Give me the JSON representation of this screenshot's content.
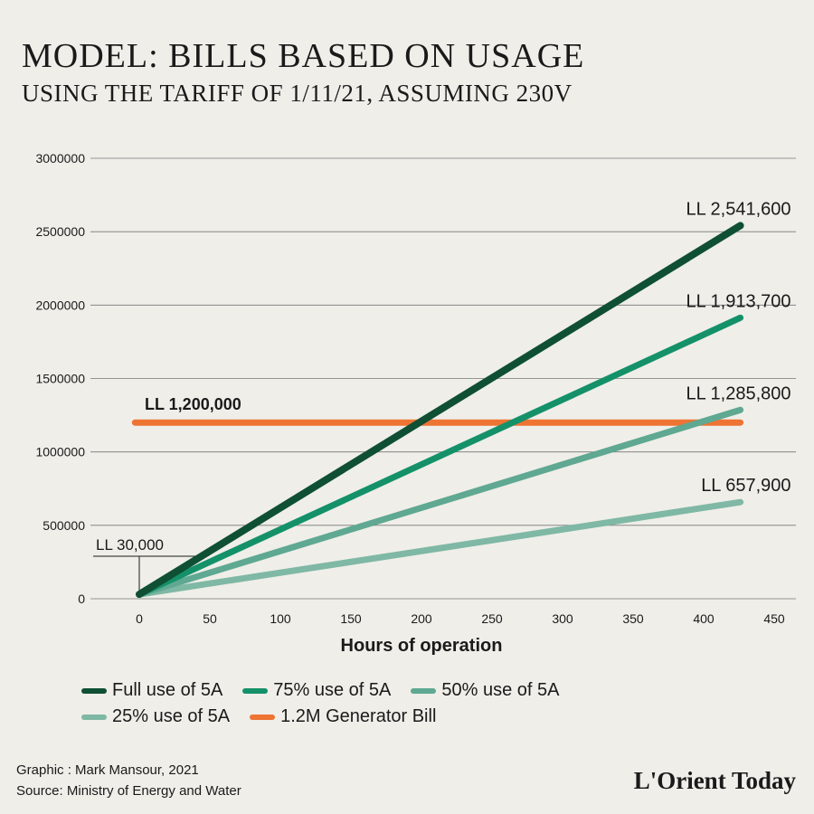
{
  "title": "MODEL: BILLS BASED ON USAGE",
  "subtitle": "USING THE TARIFF OF 1/11/21, ASSUMING 230V",
  "chart_data": {
    "type": "line",
    "xlabel": "Hours of operation",
    "ylabel": "",
    "xlim": [
      -20,
      470
    ],
    "ylim": [
      0,
      3000000
    ],
    "x_ticks": [
      0,
      50,
      100,
      150,
      200,
      250,
      300,
      350,
      400,
      450
    ],
    "y_ticks": [
      0,
      500000,
      1000000,
      1500000,
      2000000,
      2500000,
      3000000
    ],
    "grid": "horizontal",
    "series": [
      {
        "name": "Full use of 5A",
        "color": "#0f4f34",
        "x": [
          0,
          426
        ],
        "y": [
          30000,
          2541600
        ],
        "end_label": "LL 2,541,600"
      },
      {
        "name": "75% use of 5A",
        "color": "#149169",
        "x": [
          0,
          426
        ],
        "y": [
          30000,
          1913700
        ],
        "end_label": "LL 1,913,700"
      },
      {
        "name": "50% use of 5A",
        "color": "#5fa891",
        "x": [
          0,
          426
        ],
        "y": [
          30000,
          1285800
        ],
        "end_label": "LL 1,285,800"
      },
      {
        "name": "25% use of 5A",
        "color": "#7fb8a5",
        "x": [
          0,
          426
        ],
        "y": [
          30000,
          657900
        ],
        "end_label": "LL 657,900"
      },
      {
        "name": "1.2M Generator Bill",
        "color": "#ee7433",
        "x": [
          -3,
          426
        ],
        "y": [
          1200000,
          1200000
        ],
        "line_label": "LL 1,200,000"
      }
    ],
    "annotations": [
      {
        "text": "LL 30,000",
        "x": 0,
        "y": 30000
      }
    ],
    "legend_placement": "bottom"
  },
  "credits": {
    "graphic": "Graphic : Mark Mansour, 2021",
    "source": "Source: Ministry of Energy and Water"
  },
  "brand": "L'Orient Today"
}
